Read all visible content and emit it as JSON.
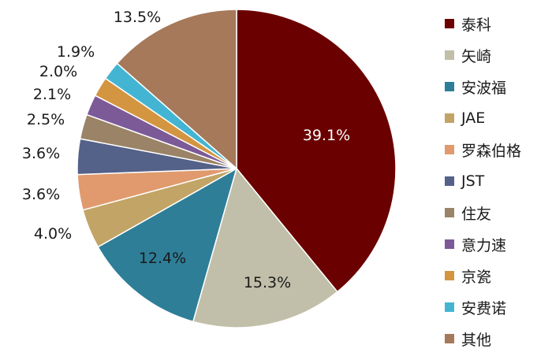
{
  "chart_data": {
    "type": "pie",
    "title": "",
    "categories": [
      "泰科",
      "矢崎",
      "安波福",
      "JAE",
      "罗森伯格",
      "JST",
      "住友",
      "意力速",
      "京瓷",
      "安费诺",
      "其他"
    ],
    "values": [
      39.1,
      15.3,
      12.4,
      4.0,
      3.6,
      3.6,
      2.5,
      2.1,
      2.0,
      1.9,
      13.5
    ],
    "labels": [
      "39.1%",
      "15.3%",
      "12.4%",
      "4.0%",
      "3.6%",
      "3.6%",
      "2.5%",
      "2.1%",
      "2.0%",
      "1.9%",
      "13.5%"
    ],
    "colors": [
      "#6b0000",
      "#c1bfa9",
      "#2e7e97",
      "#c2a466",
      "#e09a6d",
      "#546188",
      "#9a8366",
      "#7c5a98",
      "#d49540",
      "#43b5d2",
      "#a5795a"
    ],
    "label_colors": [
      "#ffffff",
      "#1a1a1a",
      "#1a1a1a",
      "#1a1a1a",
      "#1a1a1a",
      "#1a1a1a",
      "#1a1a1a",
      "#1a1a1a",
      "#1a1a1a",
      "#1a1a1a",
      "#1a1a1a"
    ],
    "legend_position": "right",
    "start": "top (12 o'clock)",
    "direction": "clockwise"
  }
}
